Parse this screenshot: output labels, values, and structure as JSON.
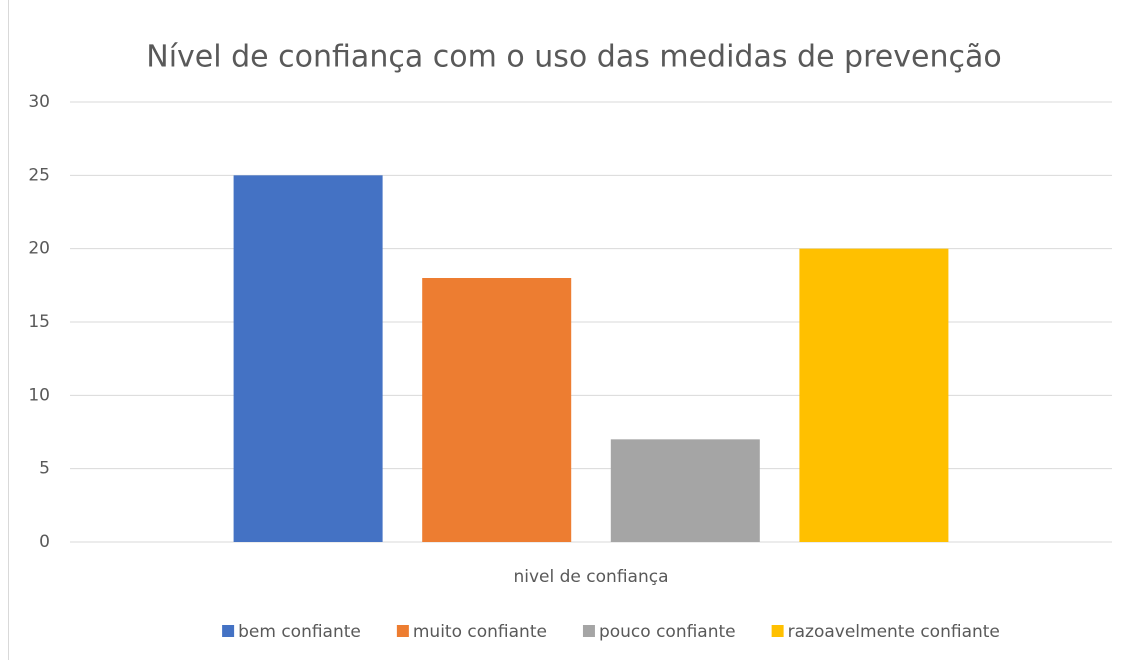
{
  "chart_data": {
    "type": "bar",
    "title": "Nível de confiança com o uso das medidas de prevenção",
    "categories": [
      "nivel de confiança"
    ],
    "series": [
      {
        "name": "bem confiante",
        "color": "#4472c4",
        "values": [
          25
        ]
      },
      {
        "name": "muito confiante",
        "color": "#ed7d31",
        "values": [
          18
        ]
      },
      {
        "name": "pouco confiante",
        "color": "#a5a5a5",
        "values": [
          7
        ]
      },
      {
        "name": "razoavelmente confiante",
        "color": "#ffc000",
        "values": [
          20
        ]
      }
    ],
    "ylim": [
      0,
      30
    ],
    "yticks": [
      0,
      5,
      10,
      15,
      20,
      25,
      30
    ],
    "grid": true,
    "legend": "bottom"
  }
}
